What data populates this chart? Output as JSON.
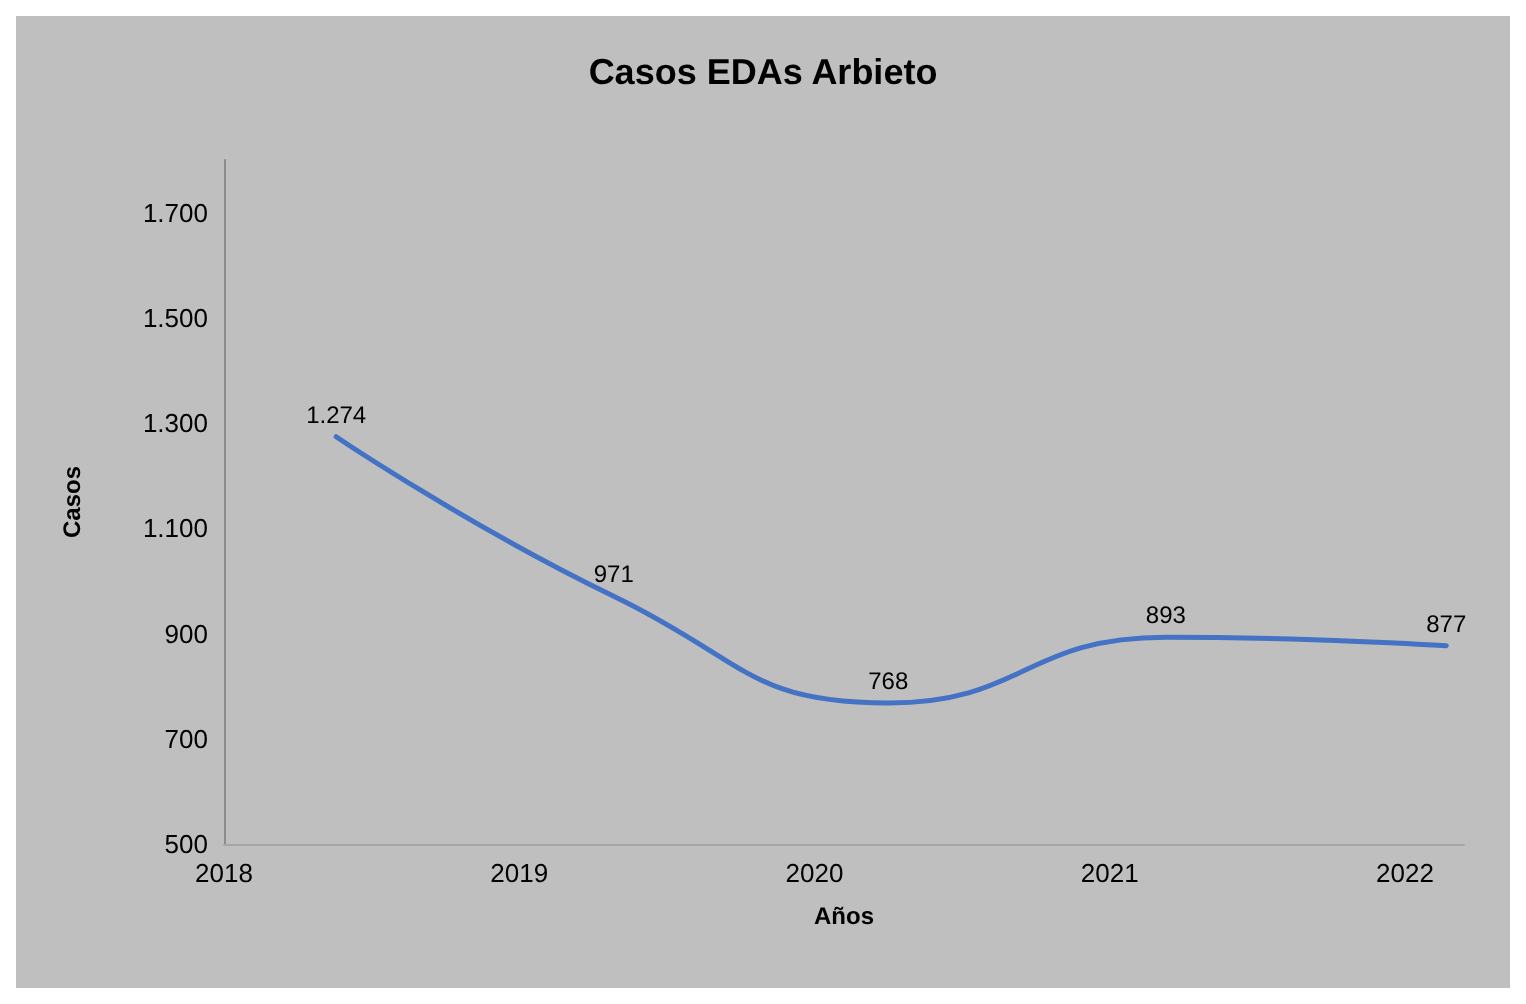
{
  "chart_data": {
    "type": "line",
    "title": "Casos EDAs Arbieto",
    "xlabel": "Años",
    "ylabel": "Casos",
    "x": [
      2018.38,
      2019.32,
      2020.25,
      2021.19,
      2022.14
    ],
    "series": [
      {
        "color": "#4472c4",
        "values": [
          1274,
          971,
          768,
          893,
          877
        ],
        "value_labels": [
          "1.274",
          "971",
          "768",
          "893",
          "877"
        ]
      }
    ],
    "xlim": [
      2018,
      2022.2
    ],
    "xticks": [
      2018,
      2019,
      2020,
      2021,
      2022
    ],
    "ylim": [
      500,
      1800
    ],
    "yticks": [
      {
        "value": 500,
        "label": "500"
      },
      {
        "value": 700,
        "label": "700"
      },
      {
        "value": 900,
        "label": "900"
      },
      {
        "value": 1100,
        "label": "1.100"
      },
      {
        "value": 1300,
        "label": "1.300"
      },
      {
        "value": 1500,
        "label": "1.500"
      },
      {
        "value": 1700,
        "label": "1.700"
      }
    ],
    "grid": false,
    "marker": "none",
    "line_style": "solid"
  }
}
